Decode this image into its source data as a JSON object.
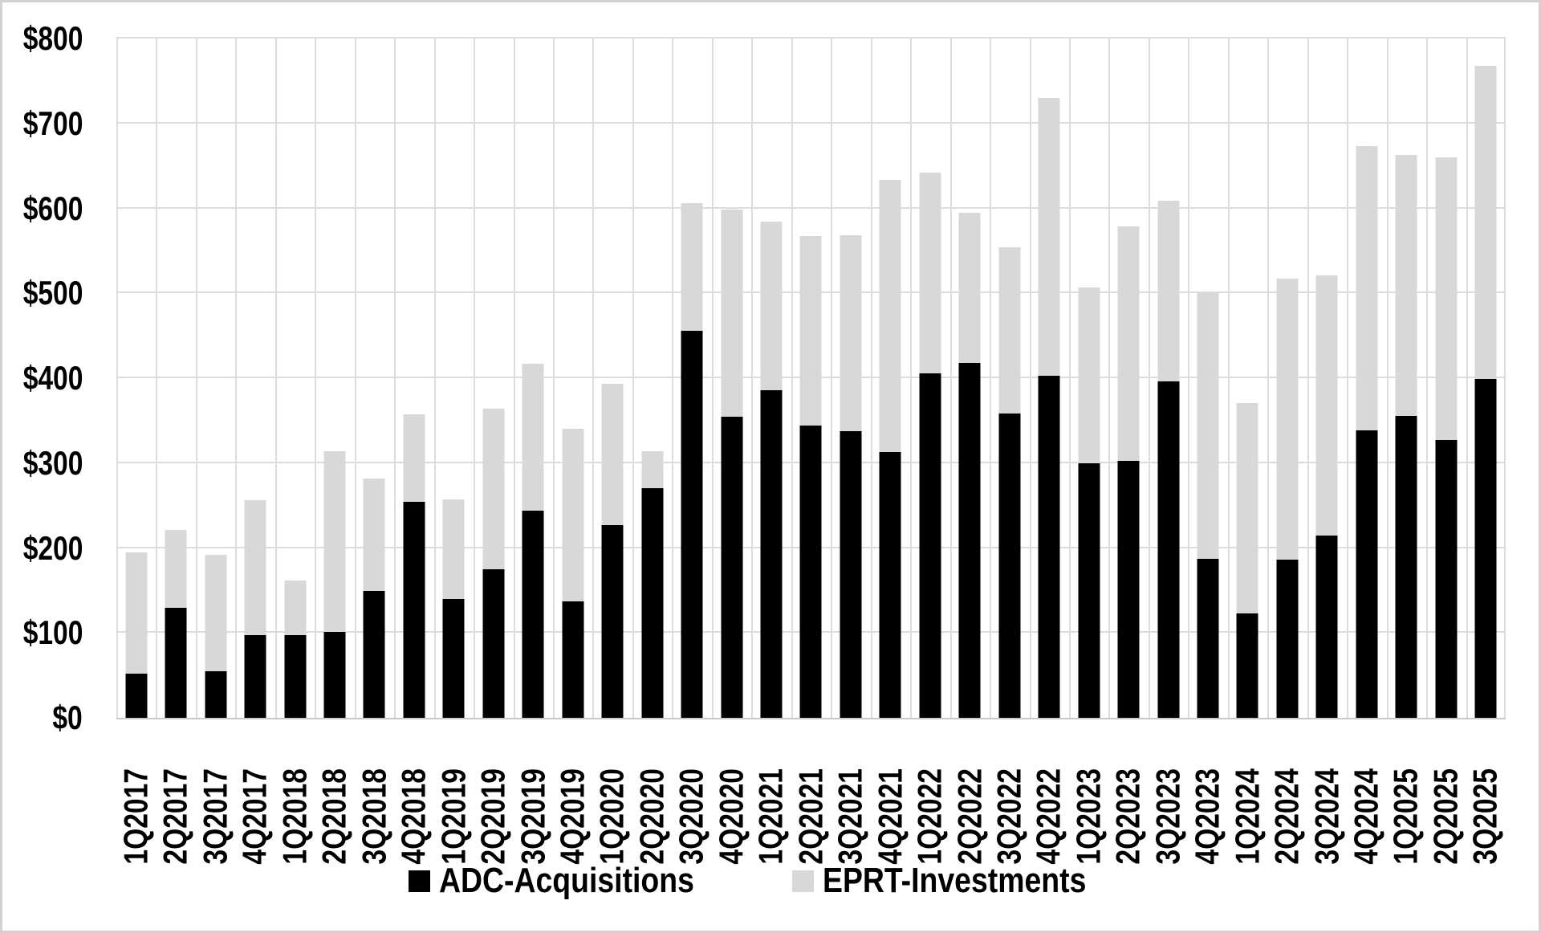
{
  "chart_data": {
    "type": "bar",
    "stacked": true,
    "title": "",
    "xlabel": "",
    "ylabel": "",
    "ylim": [
      0,
      800
    ],
    "y_tick_labels": [
      "$0",
      "$100",
      "$200",
      "$300",
      "$400",
      "$500",
      "$600",
      "$700",
      "$800"
    ],
    "grid": true,
    "legend_position": "bottom",
    "categories": [
      "1Q2017",
      "2Q2017",
      "3Q2017",
      "4Q2017",
      "1Q2018",
      "2Q2018",
      "3Q2018",
      "4Q2018",
      "1Q2019",
      "2Q2019",
      "3Q2019",
      "4Q2019",
      "1Q2020",
      "2Q2020",
      "3Q2020",
      "4Q2020",
      "1Q2021",
      "2Q2021",
      "3Q2021",
      "4Q2021",
      "1Q2022",
      "2Q2022",
      "3Q2022",
      "4Q2022",
      "1Q2023",
      "2Q2023",
      "3Q2023",
      "4Q2023",
      "1Q2024",
      "2Q2024",
      "3Q2024",
      "4Q2024",
      "1Q2025",
      "2Q2025",
      "3Q2025"
    ],
    "series": [
      {
        "name": "ADC-Acquisitions",
        "color": "#000000",
        "values": [
          52,
          130,
          55,
          97,
          97,
          101,
          149,
          254,
          140,
          175,
          244,
          137,
          227,
          270,
          456,
          355,
          386,
          344,
          338,
          313,
          406,
          418,
          358,
          403,
          300,
          303,
          396,
          187,
          123,
          186,
          215,
          339,
          356,
          327,
          399
        ]
      },
      {
        "name": "EPRT-Investments",
        "color": "#d8d8d8",
        "values": [
          143,
          91,
          137,
          159,
          65,
          213,
          133,
          103,
          117,
          189,
          173,
          203,
          166,
          44,
          150,
          244,
          198,
          223,
          230,
          321,
          236,
          177,
          196,
          327,
          207,
          276,
          213,
          313,
          248,
          331,
          306,
          334,
          307,
          333,
          369
        ]
      }
    ],
    "colors": {
      "gridline": "#dcdcdc",
      "axis_line": "#c8c8c8",
      "frame_border": "#d2d2d2",
      "background": "#ffffff"
    }
  },
  "legend": {
    "items": [
      {
        "label": "ADC-Acquisitions",
        "color": "#000000"
      },
      {
        "label": "EPRT-Investments",
        "color": "#d8d8d8"
      }
    ]
  }
}
